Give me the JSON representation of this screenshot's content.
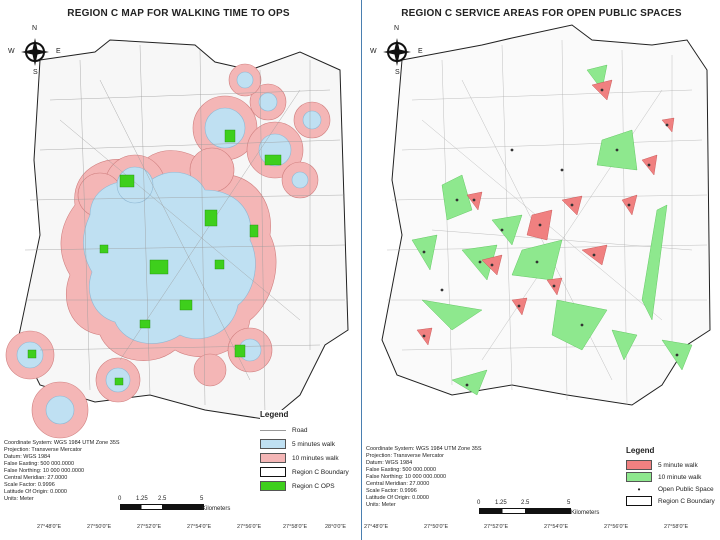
{
  "left": {
    "title": "REGION C MAP FOR WALKING TIME TO OPS",
    "compass": {
      "n": "N",
      "s": "S",
      "e": "E",
      "w": "W"
    },
    "legend": {
      "title": "Legend",
      "items": [
        {
          "label": "Road",
          "color": "#999999",
          "kind": "line"
        },
        {
          "label": "5 minutes walk",
          "color": "#bfe0f2",
          "kind": "box"
        },
        {
          "label": "10 minutes walk",
          "color": "#f4b6b6",
          "kind": "box"
        },
        {
          "label": "Region C Boundary",
          "color": "#ffffff",
          "kind": "box"
        },
        {
          "label": "Region C OPS",
          "color": "#3ecf1c",
          "kind": "box"
        }
      ]
    },
    "metadata": [
      "Coordinate System: WGS 1984 UTM Zone 35S",
      "Projection: Transverse Mercator",
      "Datum: WGS 1984",
      "False Easting: 500 000.0000",
      "False Northing: 10 000 000.0000",
      "Central Meridian: 27.0000",
      "Scale Factor: 0.9996",
      "Latitude Of Origin: 0.0000",
      "Units: Meter"
    ],
    "scale": {
      "labels": [
        "0",
        "1.25",
        "2.5",
        "5"
      ],
      "unit": "Kilometers"
    },
    "lon_ticks": [
      "27°48'0\"E",
      "27°50'0\"E",
      "27°52'0\"E",
      "27°54'0\"E",
      "27°56'0\"E",
      "27°58'0\"E",
      "28°0'0\"E"
    ]
  },
  "right": {
    "title": "REGION C SERVICE AREAS FOR OPEN PUBLIC SPACES",
    "compass": {
      "n": "N",
      "s": "S",
      "e": "E",
      "w": "W"
    },
    "legend": {
      "title": "Legend",
      "items": [
        {
          "label": "5 minute walk",
          "color": "#f08080",
          "kind": "box"
        },
        {
          "label": "10 minute walk",
          "color": "#8ee88e",
          "kind": "box"
        },
        {
          "label": "Open Public Space",
          "color": "#333333",
          "kind": "dot"
        },
        {
          "label": "Region C Boundary",
          "color": "#ffffff",
          "kind": "box"
        }
      ]
    },
    "metadata": [
      "Coordinate System: WGS 1984 UTM Zone 35S",
      "Projection: Transverse Mercator",
      "Datum: WGS 1984",
      "False Easting: 500 000.0000",
      "False Northing: 10 000 000.0000",
      "Central Meridian: 27.0000",
      "Scale Factor: 0.9996",
      "Latitude Of Origin: 0.0000",
      "Units: Meter"
    ],
    "scale": {
      "labels": [
        "0",
        "1.25",
        "2.5",
        "5"
      ],
      "unit": "Kilometers"
    },
    "lon_ticks": [
      "27°48'0\"E",
      "27°50'0\"E",
      "27°52'0\"E",
      "27°54'0\"E",
      "27°56'0\"E",
      "27°58'0\"E"
    ]
  }
}
